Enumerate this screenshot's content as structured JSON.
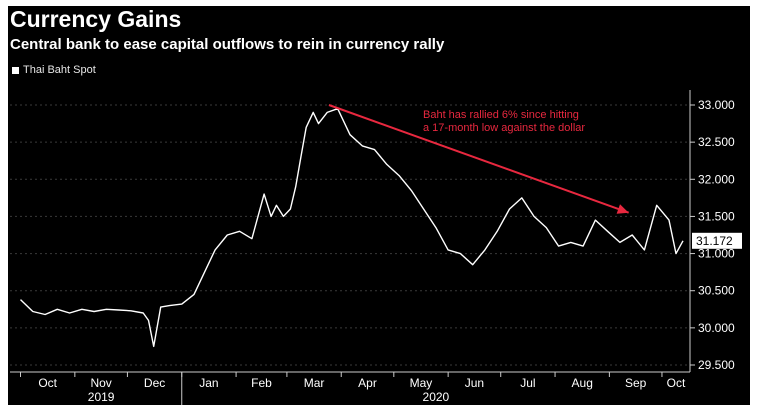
{
  "title": "Currency Gains",
  "subtitle": "Central bank to ease capital outflows to rein in currency rally",
  "colors": {
    "background": "#000000",
    "line": "#ffffff",
    "annotation": "#e8283f",
    "grid": "#3a3a3a",
    "text": "#ffffff"
  },
  "chart_data": {
    "type": "line",
    "series": [
      {
        "name": "Thai Baht Spot",
        "x": [
          "2019-10-01",
          "2019-10-08",
          "2019-10-15",
          "2019-10-22",
          "2019-10-29",
          "2019-11-05",
          "2019-11-12",
          "2019-11-19",
          "2019-11-26",
          "2019-12-03",
          "2019-12-10",
          "2019-12-13",
          "2019-12-16",
          "2019-12-20",
          "2019-12-25",
          "2020-01-01",
          "2020-01-08",
          "2020-01-15",
          "2020-01-20",
          "2020-01-27",
          "2020-02-03",
          "2020-02-10",
          "2020-02-17",
          "2020-02-21",
          "2020-02-24",
          "2020-02-28",
          "2020-03-03",
          "2020-03-06",
          "2020-03-09",
          "2020-03-12",
          "2020-03-16",
          "2020-03-19",
          "2020-03-24",
          "2020-03-30",
          "2020-04-06",
          "2020-04-13",
          "2020-04-20",
          "2020-04-27",
          "2020-05-04",
          "2020-05-11",
          "2020-05-18",
          "2020-05-25",
          "2020-06-01",
          "2020-06-08",
          "2020-06-15",
          "2020-06-22",
          "2020-06-29",
          "2020-07-06",
          "2020-07-13",
          "2020-07-20",
          "2020-07-27",
          "2020-08-03",
          "2020-08-10",
          "2020-08-17",
          "2020-08-24",
          "2020-08-31",
          "2020-09-07",
          "2020-09-14",
          "2020-09-21",
          "2020-09-28",
          "2020-10-05",
          "2020-10-09",
          "2020-10-13"
        ],
        "values": [
          30.38,
          30.22,
          30.18,
          30.25,
          30.2,
          30.25,
          30.22,
          30.25,
          30.24,
          30.23,
          30.2,
          30.1,
          29.75,
          30.28,
          30.3,
          30.32,
          30.45,
          30.8,
          31.05,
          31.25,
          31.3,
          31.2,
          31.8,
          31.5,
          31.65,
          31.5,
          31.6,
          31.9,
          32.3,
          32.7,
          32.9,
          32.75,
          32.9,
          32.95,
          32.6,
          32.45,
          32.4,
          32.2,
          32.05,
          31.85,
          31.6,
          31.35,
          31.05,
          31.0,
          30.85,
          31.05,
          31.3,
          31.6,
          31.75,
          31.5,
          31.35,
          31.1,
          31.15,
          31.1,
          31.45,
          31.3,
          31.15,
          31.25,
          31.05,
          31.65,
          31.45,
          31.0,
          31.172
        ]
      }
    ],
    "x_ticks": [
      "Oct",
      "Nov",
      "Dec",
      "Jan",
      "Feb",
      "Mar",
      "Apr",
      "May",
      "Jun",
      "Jul",
      "Aug",
      "Sep",
      "Oct"
    ],
    "x_years": [
      "2019",
      "2020"
    ],
    "y_ticks": [
      "29.500",
      "30.000",
      "30.500",
      "31.000",
      "31.500",
      "32.000",
      "32.500",
      "33.000"
    ],
    "ylim": [
      29.5,
      33.0
    ],
    "last_value_label": "31.172",
    "annotation": {
      "text_line1": "Baht has rallied 6% since hitting",
      "text_line2": "a 17-month low against the dollar",
      "arrow_from": {
        "x": "2020-03-25",
        "y": 33.0
      },
      "arrow_to": {
        "x": "2020-09-12",
        "y": 31.55
      }
    },
    "grid": true,
    "legend_position": "top-left"
  }
}
